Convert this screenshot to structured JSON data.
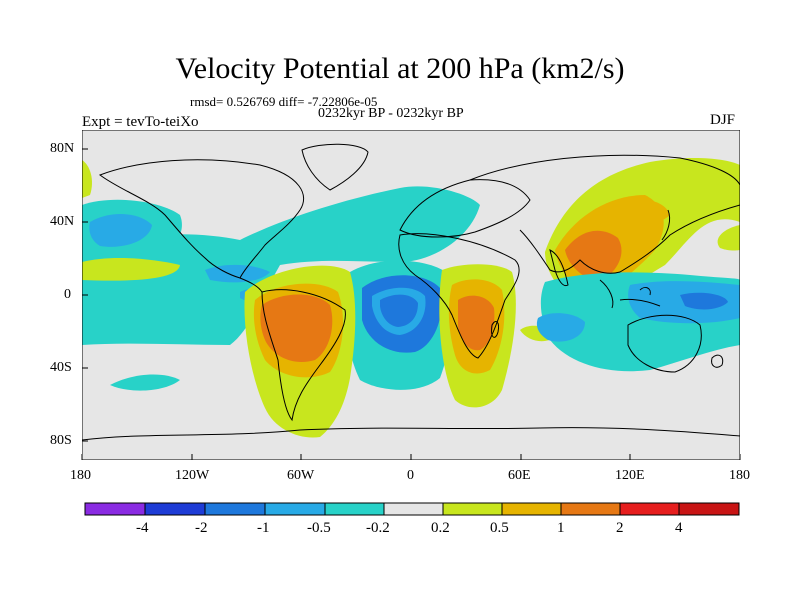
{
  "title": "Velocity Potential at 200 hPa (km2/s)",
  "stats": "rmsd= 0.526769 diff= -7.22806e-05",
  "period": "0232kyr BP - 0232kyr BP",
  "experiment": "Expt = tevTo-teiXo",
  "season": "DJF",
  "lat_labels": [
    "80N",
    "40N",
    "0",
    "40S",
    "80S"
  ],
  "lon_labels": [
    "180",
    "120W",
    "60W",
    "0",
    "60E",
    "120E",
    "180"
  ],
  "colorbar": {
    "levels": [
      "-4",
      "-2",
      "-1",
      "-0.5",
      "-0.2",
      "0.2",
      "0.5",
      "1",
      "2",
      "4"
    ],
    "colors": [
      "#8a2be2",
      "#1e3cd6",
      "#1e78dc",
      "#28aae6",
      "#28d2c8",
      "#e6e6e6",
      "#c8e61e",
      "#e6b400",
      "#e67814",
      "#e61e1e",
      "#c81414"
    ]
  }
}
